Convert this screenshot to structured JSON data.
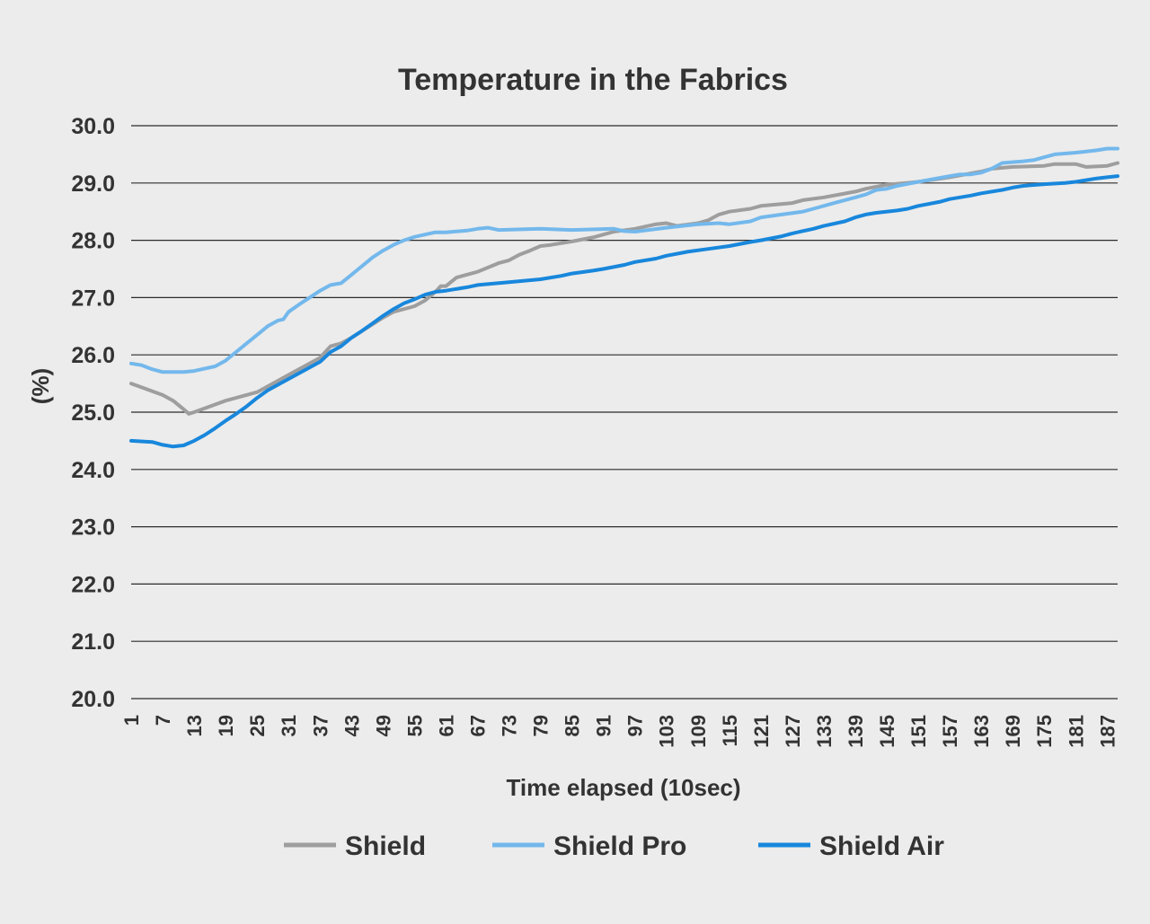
{
  "chart_data": {
    "type": "line",
    "title": "Temperature in the Fabrics",
    "xlabel": "Time elapsed (10sec)",
    "ylabel": "(%)",
    "ylim": [
      20,
      30
    ],
    "yticks": [
      "20.0",
      "21.0",
      "22.0",
      "23.0",
      "24.0",
      "25.0",
      "26.0",
      "27.0",
      "28.0",
      "29.0",
      "30.0"
    ],
    "xlim": [
      1,
      189
    ],
    "xticks": [
      1,
      7,
      13,
      19,
      25,
      31,
      37,
      43,
      49,
      55,
      61,
      67,
      73,
      79,
      85,
      91,
      97,
      103,
      109,
      115,
      121,
      127,
      133,
      139,
      145,
      151,
      157,
      163,
      169,
      175,
      181,
      187
    ],
    "grid": "horizontal",
    "legend_position": "bottom",
    "series": [
      {
        "name": "Shield",
        "color": "#9e9e9e",
        "points": [
          [
            1,
            25.5
          ],
          [
            7,
            25.3
          ],
          [
            9,
            25.2
          ],
          [
            11,
            25.05
          ],
          [
            12,
            24.97
          ],
          [
            13,
            25.0
          ],
          [
            19,
            25.2
          ],
          [
            25,
            25.35
          ],
          [
            31,
            25.65
          ],
          [
            37,
            25.95
          ],
          [
            39,
            26.15
          ],
          [
            41,
            26.2
          ],
          [
            43,
            26.3
          ],
          [
            49,
            26.65
          ],
          [
            51,
            26.75
          ],
          [
            55,
            26.85
          ],
          [
            57,
            26.95
          ],
          [
            59,
            27.1
          ],
          [
            60,
            27.2
          ],
          [
            61,
            27.2
          ],
          [
            63,
            27.35
          ],
          [
            67,
            27.45
          ],
          [
            71,
            27.6
          ],
          [
            73,
            27.65
          ],
          [
            75,
            27.75
          ],
          [
            77,
            27.82
          ],
          [
            79,
            27.9
          ],
          [
            81,
            27.92
          ],
          [
            85,
            27.98
          ],
          [
            89,
            28.05
          ],
          [
            91,
            28.1
          ],
          [
            93,
            28.15
          ],
          [
            97,
            28.2
          ],
          [
            101,
            28.28
          ],
          [
            103,
            28.3
          ],
          [
            105,
            28.25
          ],
          [
            109,
            28.3
          ],
          [
            111,
            28.35
          ],
          [
            113,
            28.45
          ],
          [
            115,
            28.5
          ],
          [
            119,
            28.55
          ],
          [
            121,
            28.6
          ],
          [
            127,
            28.65
          ],
          [
            129,
            28.7
          ],
          [
            133,
            28.75
          ],
          [
            139,
            28.85
          ],
          [
            141,
            28.9
          ],
          [
            145,
            28.97
          ],
          [
            151,
            29.02
          ],
          [
            157,
            29.1
          ],
          [
            163,
            29.2
          ],
          [
            165,
            29.25
          ],
          [
            169,
            29.28
          ],
          [
            175,
            29.3
          ],
          [
            177,
            29.33
          ],
          [
            181,
            29.33
          ],
          [
            183,
            29.28
          ],
          [
            187,
            29.3
          ],
          [
            189,
            29.35
          ]
        ]
      },
      {
        "name": "Shield Pro",
        "color": "#73b8ec",
        "points": [
          [
            1,
            25.85
          ],
          [
            3,
            25.82
          ],
          [
            5,
            25.75
          ],
          [
            7,
            25.7
          ],
          [
            11,
            25.7
          ],
          [
            13,
            25.72
          ],
          [
            17,
            25.8
          ],
          [
            19,
            25.9
          ],
          [
            21,
            26.05
          ],
          [
            23,
            26.2
          ],
          [
            25,
            26.35
          ],
          [
            27,
            26.5
          ],
          [
            29,
            26.6
          ],
          [
            30,
            26.62
          ],
          [
            31,
            26.75
          ],
          [
            33,
            26.88
          ],
          [
            35,
            27.0
          ],
          [
            37,
            27.12
          ],
          [
            39,
            27.22
          ],
          [
            41,
            27.25
          ],
          [
            43,
            27.4
          ],
          [
            45,
            27.55
          ],
          [
            47,
            27.7
          ],
          [
            49,
            27.82
          ],
          [
            51,
            27.92
          ],
          [
            53,
            28.0
          ],
          [
            55,
            28.06
          ],
          [
            57,
            28.1
          ],
          [
            59,
            28.14
          ],
          [
            61,
            28.14
          ],
          [
            65,
            28.17
          ],
          [
            67,
            28.2
          ],
          [
            69,
            28.22
          ],
          [
            71,
            28.18
          ],
          [
            79,
            28.2
          ],
          [
            85,
            28.18
          ],
          [
            93,
            28.2
          ],
          [
            95,
            28.16
          ],
          [
            97,
            28.15
          ],
          [
            103,
            28.22
          ],
          [
            109,
            28.28
          ],
          [
            113,
            28.3
          ],
          [
            115,
            28.28
          ],
          [
            119,
            28.33
          ],
          [
            121,
            28.4
          ],
          [
            125,
            28.45
          ],
          [
            129,
            28.5
          ],
          [
            131,
            28.55
          ],
          [
            135,
            28.65
          ],
          [
            137,
            28.7
          ],
          [
            139,
            28.75
          ],
          [
            141,
            28.8
          ],
          [
            143,
            28.88
          ],
          [
            145,
            28.9
          ],
          [
            147,
            28.95
          ],
          [
            151,
            29.02
          ],
          [
            157,
            29.12
          ],
          [
            159,
            29.15
          ],
          [
            161,
            29.15
          ],
          [
            163,
            29.18
          ],
          [
            165,
            29.25
          ],
          [
            167,
            29.35
          ],
          [
            171,
            29.38
          ],
          [
            173,
            29.4
          ],
          [
            175,
            29.45
          ],
          [
            177,
            29.5
          ],
          [
            181,
            29.53
          ],
          [
            183,
            29.55
          ],
          [
            185,
            29.57
          ],
          [
            187,
            29.6
          ],
          [
            189,
            29.6
          ]
        ]
      },
      {
        "name": "Shield Air",
        "color": "#1887dc",
        "points": [
          [
            1,
            24.5
          ],
          [
            5,
            24.48
          ],
          [
            7,
            24.43
          ],
          [
            9,
            24.4
          ],
          [
            11,
            24.42
          ],
          [
            13,
            24.5
          ],
          [
            15,
            24.6
          ],
          [
            17,
            24.72
          ],
          [
            19,
            24.85
          ],
          [
            21,
            24.97
          ],
          [
            23,
            25.1
          ],
          [
            25,
            25.25
          ],
          [
            27,
            25.38
          ],
          [
            29,
            25.48
          ],
          [
            31,
            25.58
          ],
          [
            33,
            25.68
          ],
          [
            35,
            25.78
          ],
          [
            37,
            25.88
          ],
          [
            39,
            26.05
          ],
          [
            41,
            26.15
          ],
          [
            43,
            26.3
          ],
          [
            45,
            26.42
          ],
          [
            47,
            26.55
          ],
          [
            49,
            26.68
          ],
          [
            51,
            26.8
          ],
          [
            53,
            26.9
          ],
          [
            55,
            26.97
          ],
          [
            57,
            27.05
          ],
          [
            59,
            27.1
          ],
          [
            61,
            27.12
          ],
          [
            65,
            27.18
          ],
          [
            67,
            27.22
          ],
          [
            73,
            27.27
          ],
          [
            79,
            27.32
          ],
          [
            83,
            27.38
          ],
          [
            85,
            27.42
          ],
          [
            89,
            27.47
          ],
          [
            91,
            27.5
          ],
          [
            95,
            27.57
          ],
          [
            97,
            27.62
          ],
          [
            101,
            27.68
          ],
          [
            103,
            27.73
          ],
          [
            107,
            27.8
          ],
          [
            111,
            27.85
          ],
          [
            115,
            27.9
          ],
          [
            119,
            27.97
          ],
          [
            121,
            28.0
          ],
          [
            125,
            28.07
          ],
          [
            127,
            28.12
          ],
          [
            131,
            28.2
          ],
          [
            133,
            28.25
          ],
          [
            137,
            28.33
          ],
          [
            139,
            28.4
          ],
          [
            141,
            28.45
          ],
          [
            143,
            28.48
          ],
          [
            147,
            28.52
          ],
          [
            149,
            28.55
          ],
          [
            151,
            28.6
          ],
          [
            155,
            28.67
          ],
          [
            157,
            28.72
          ],
          [
            161,
            28.78
          ],
          [
            163,
            28.82
          ],
          [
            167,
            28.88
          ],
          [
            169,
            28.92
          ],
          [
            171,
            28.95
          ],
          [
            175,
            28.98
          ],
          [
            179,
            29.0
          ],
          [
            181,
            29.02
          ],
          [
            183,
            29.05
          ],
          [
            185,
            29.08
          ],
          [
            187,
            29.1
          ],
          [
            189,
            29.12
          ]
        ]
      }
    ]
  }
}
